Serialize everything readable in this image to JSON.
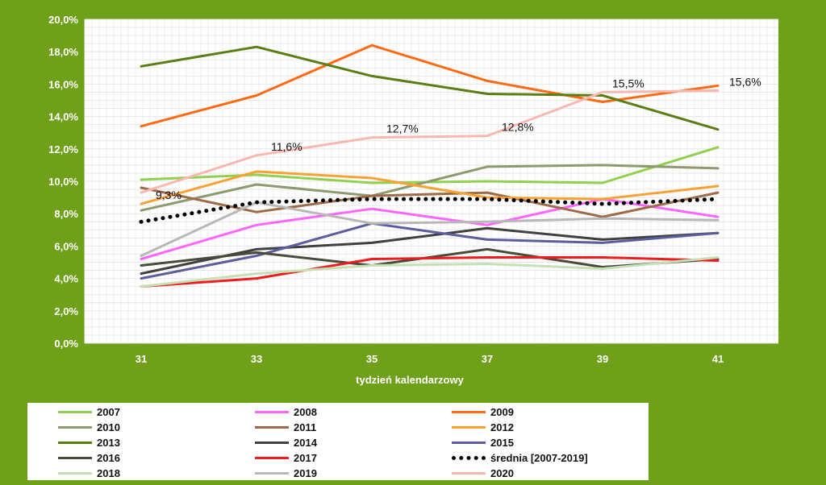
{
  "chart_data": {
    "type": "line",
    "xlabel": "tydzień kalendarzowy",
    "ylabel": "",
    "ylim": [
      0,
      20
    ],
    "y_ticks": [
      "0,0%",
      "2,0%",
      "4,0%",
      "6,0%",
      "8,0%",
      "10,0%",
      "12,0%",
      "14,0%",
      "16,0%",
      "18,0%",
      "20,0%"
    ],
    "categories": [
      "31",
      "33",
      "35",
      "37",
      "39",
      "41"
    ],
    "grid": "minor gridlines, light",
    "legend_position": "bottom",
    "series": [
      {
        "name": "2007",
        "color": "#92d050",
        "values": [
          10.1,
          10.4,
          9.9,
          10.0,
          9.9,
          12.1
        ]
      },
      {
        "name": "2008",
        "color": "#ff66ff",
        "values": [
          5.2,
          7.3,
          8.3,
          7.3,
          8.9,
          7.8
        ]
      },
      {
        "name": "2009",
        "color": "#ff6a13",
        "values": [
          13.4,
          15.3,
          18.4,
          16.2,
          14.9,
          15.9
        ]
      },
      {
        "name": "2010",
        "color": "#8c9a6e",
        "values": [
          8.2,
          9.8,
          9.1,
          10.9,
          11.0,
          10.8
        ]
      },
      {
        "name": "2011",
        "color": "#9e6a48",
        "values": [
          9.6,
          8.1,
          9.1,
          9.3,
          7.8,
          9.3
        ]
      },
      {
        "name": "2012",
        "color": "#f7a234",
        "values": [
          8.6,
          10.6,
          10.2,
          9.0,
          8.9,
          9.7
        ]
      },
      {
        "name": "2013",
        "color": "#5a7d14",
        "values": [
          17.1,
          18.3,
          16.5,
          15.4,
          15.3,
          13.2
        ]
      },
      {
        "name": "2014",
        "color": "#404040",
        "values": [
          4.3,
          5.8,
          6.2,
          7.1,
          6.4,
          6.8
        ]
      },
      {
        "name": "2015",
        "color": "#5b5e9e",
        "values": [
          4.0,
          5.4,
          7.4,
          6.4,
          6.2,
          6.8
        ]
      },
      {
        "name": "2016",
        "color": "#4a4a3a",
        "values": [
          4.8,
          5.6,
          4.8,
          5.8,
          4.7,
          5.2
        ]
      },
      {
        "name": "2017",
        "color": "#ee1c1c",
        "values": [
          3.5,
          4.0,
          5.2,
          5.3,
          5.3,
          5.1
        ]
      },
      {
        "name": "2018",
        "color": "#c5e0b4",
        "values": [
          3.5,
          4.3,
          4.8,
          4.9,
          4.6,
          5.3
        ]
      },
      {
        "name": "2019",
        "color": "#b8b8b8",
        "values": [
          5.4,
          8.7,
          7.4,
          7.5,
          7.7,
          7.6
        ]
      },
      {
        "name": "2020",
        "color": "#f8b8b0",
        "values": [
          9.3,
          11.6,
          12.7,
          12.8,
          15.5,
          15.6
        ]
      },
      {
        "name": "średnia [2007-2019]",
        "color": "#000000",
        "dotted": true,
        "values": [
          7.5,
          8.7,
          8.9,
          8.9,
          8.6,
          8.9
        ]
      }
    ],
    "data_labels": [
      {
        "series": "2020",
        "index": 0,
        "text": "9,3%"
      },
      {
        "series": "2020",
        "index": 1,
        "text": "11,6%"
      },
      {
        "series": "2020",
        "index": 2,
        "text": "12,7%"
      },
      {
        "series": "2020",
        "index": 3,
        "text": "12,8%"
      },
      {
        "series": "2020",
        "index": 4,
        "text": "15,5%"
      },
      {
        "series": "2020",
        "index": 5,
        "text": "15,6%"
      }
    ]
  },
  "legend": [
    {
      "label": "2007",
      "color": "#92d050"
    },
    {
      "label": "2008",
      "color": "#ff66ff"
    },
    {
      "label": "2009",
      "color": "#ff6a13"
    },
    {
      "label": "2010",
      "color": "#8c9a6e"
    },
    {
      "label": "2011",
      "color": "#9e6a48"
    },
    {
      "label": "2012",
      "color": "#f7a234"
    },
    {
      "label": "2013",
      "color": "#5a7d14"
    },
    {
      "label": "2014",
      "color": "#404040"
    },
    {
      "label": "2015",
      "color": "#5b5e9e"
    },
    {
      "label": "2016",
      "color": "#4a4a3a"
    },
    {
      "label": "2017",
      "color": "#ee1c1c"
    },
    {
      "label": "średnia [2007-2019]",
      "color": "#000000",
      "dotted": true
    },
    {
      "label": "2018",
      "color": "#c5e0b4"
    },
    {
      "label": "2019",
      "color": "#b8b8b8"
    },
    {
      "label": "2020",
      "color": "#f8b8b0"
    }
  ],
  "colors": {
    "background": "#6fa01a",
    "plot_area": "#ffffff",
    "grid": "#e8e8e8"
  }
}
